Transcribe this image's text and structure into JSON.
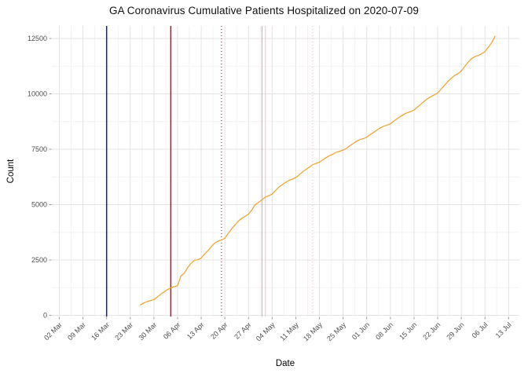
{
  "chart_data": {
    "type": "line",
    "title": "GA Coronavirus Cumulative Patients Hospitalized on 2020-07-09",
    "xlabel": "Date",
    "ylabel": "Count",
    "x_tick_labels": [
      "02 Mar",
      "09 Mar",
      "16 Mar",
      "23 Mar",
      "30 Mar",
      "06 Apr",
      "13 Apr",
      "20 Apr",
      "27 Apr",
      "04 May",
      "11 May",
      "18 May",
      "25 May",
      "01 Jun",
      "08 Jun",
      "15 Jun",
      "22 Jun",
      "29 Jun",
      "06 Jul",
      "13 Jul"
    ],
    "x_tick_start_date": "2020-03-02",
    "x_tick_interval_days": 7,
    "y_ticks": [
      0,
      2500,
      5000,
      7500,
      10000,
      12500
    ],
    "ylim": [
      0,
      13100
    ],
    "grid": "major-and-minor",
    "legend": "none",
    "colors": {
      "grid_major": "#e3e3e3",
      "grid_minor": "#f2f2f2",
      "tick_text": "#4d4d4d",
      "tick_mark": "#999999"
    },
    "series": [
      {
        "name": "cumulative-hospitalized",
        "color": "#f0a125",
        "width": 1.2,
        "points": [
          [
            "2020-03-26",
            470
          ],
          [
            "2020-03-27",
            560
          ],
          [
            "2020-03-28",
            620
          ],
          [
            "2020-03-29",
            665
          ],
          [
            "2020-03-30",
            710
          ],
          [
            "2020-03-31",
            830
          ],
          [
            "2020-04-01",
            950
          ],
          [
            "2020-04-02",
            1060
          ],
          [
            "2020-04-03",
            1160
          ],
          [
            "2020-04-04",
            1240
          ],
          [
            "2020-04-05",
            1290
          ],
          [
            "2020-04-06",
            1340
          ],
          [
            "2020-04-07",
            1780
          ],
          [
            "2020-04-08",
            1900
          ],
          [
            "2020-04-09",
            2160
          ],
          [
            "2020-04-10",
            2350
          ],
          [
            "2020-04-11",
            2480
          ],
          [
            "2020-04-12",
            2510
          ],
          [
            "2020-04-13",
            2590
          ],
          [
            "2020-04-14",
            2770
          ],
          [
            "2020-04-15",
            2920
          ],
          [
            "2020-04-16",
            3110
          ],
          [
            "2020-04-17",
            3260
          ],
          [
            "2020-04-18",
            3350
          ],
          [
            "2020-04-19",
            3410
          ],
          [
            "2020-04-20",
            3480
          ],
          [
            "2020-04-21",
            3700
          ],
          [
            "2020-04-22",
            3900
          ],
          [
            "2020-04-23",
            4080
          ],
          [
            "2020-04-24",
            4260
          ],
          [
            "2020-04-25",
            4380
          ],
          [
            "2020-04-26",
            4470
          ],
          [
            "2020-04-27",
            4570
          ],
          [
            "2020-04-28",
            4760
          ],
          [
            "2020-04-29",
            5000
          ],
          [
            "2020-04-30",
            5100
          ],
          [
            "2020-05-01",
            5220
          ],
          [
            "2020-05-02",
            5340
          ],
          [
            "2020-05-03",
            5400
          ],
          [
            "2020-05-04",
            5480
          ],
          [
            "2020-05-05",
            5640
          ],
          [
            "2020-05-06",
            5790
          ],
          [
            "2020-05-07",
            5900
          ],
          [
            "2020-05-08",
            6000
          ],
          [
            "2020-05-09",
            6100
          ],
          [
            "2020-05-10",
            6150
          ],
          [
            "2020-05-11",
            6220
          ],
          [
            "2020-05-12",
            6340
          ],
          [
            "2020-05-13",
            6480
          ],
          [
            "2020-05-14",
            6590
          ],
          [
            "2020-05-15",
            6690
          ],
          [
            "2020-05-16",
            6800
          ],
          [
            "2020-05-17",
            6860
          ],
          [
            "2020-05-18",
            6910
          ],
          [
            "2020-05-19",
            7030
          ],
          [
            "2020-05-20",
            7120
          ],
          [
            "2020-05-21",
            7210
          ],
          [
            "2020-05-22",
            7280
          ],
          [
            "2020-05-23",
            7360
          ],
          [
            "2020-05-24",
            7410
          ],
          [
            "2020-05-25",
            7460
          ],
          [
            "2020-05-26",
            7540
          ],
          [
            "2020-05-27",
            7660
          ],
          [
            "2020-05-28",
            7760
          ],
          [
            "2020-05-29",
            7860
          ],
          [
            "2020-05-30",
            7940
          ],
          [
            "2020-05-31",
            7980
          ],
          [
            "2020-06-01",
            8040
          ],
          [
            "2020-06-02",
            8160
          ],
          [
            "2020-06-03",
            8260
          ],
          [
            "2020-06-04",
            8370
          ],
          [
            "2020-06-05",
            8460
          ],
          [
            "2020-06-06",
            8540
          ],
          [
            "2020-06-07",
            8590
          ],
          [
            "2020-06-08",
            8650
          ],
          [
            "2020-06-09",
            8770
          ],
          [
            "2020-06-10",
            8880
          ],
          [
            "2020-06-11",
            8980
          ],
          [
            "2020-06-12",
            9070
          ],
          [
            "2020-06-13",
            9150
          ],
          [
            "2020-06-14",
            9200
          ],
          [
            "2020-06-15",
            9270
          ],
          [
            "2020-06-16",
            9400
          ],
          [
            "2020-06-17",
            9530
          ],
          [
            "2020-06-18",
            9660
          ],
          [
            "2020-06-19",
            9780
          ],
          [
            "2020-06-20",
            9880
          ],
          [
            "2020-06-21",
            9950
          ],
          [
            "2020-06-22",
            10040
          ],
          [
            "2020-06-23",
            10210
          ],
          [
            "2020-06-24",
            10380
          ],
          [
            "2020-06-25",
            10550
          ],
          [
            "2020-06-26",
            10700
          ],
          [
            "2020-06-27",
            10830
          ],
          [
            "2020-06-28",
            10910
          ],
          [
            "2020-06-29",
            11030
          ],
          [
            "2020-06-30",
            11230
          ],
          [
            "2020-07-01",
            11430
          ],
          [
            "2020-07-02",
            11590
          ],
          [
            "2020-07-03",
            11680
          ],
          [
            "2020-07-04",
            11730
          ],
          [
            "2020-07-05",
            11810
          ],
          [
            "2020-07-06",
            11900
          ],
          [
            "2020-07-07",
            12110
          ],
          [
            "2020-07-08",
            12310
          ],
          [
            "2020-07-09",
            12610
          ]
        ]
      }
    ],
    "reference_lines": [
      {
        "name": "vline-blue-solid",
        "date": "2020-03-16",
        "color": "#1616b8",
        "style": "solid",
        "width": 1.5
      },
      {
        "name": "vline-darkred-solid",
        "date": "2020-04-04",
        "color": "#b01624",
        "style": "solid",
        "width": 1.5
      },
      {
        "name": "vline-red-dotted",
        "date": "2020-04-19",
        "color": "#c64242",
        "style": "dotted",
        "width": 1.3
      },
      {
        "name": "vline-pink-solid-1",
        "date": "2020-05-01",
        "color": "#f2a2b8",
        "style": "solid",
        "width": 1.1
      },
      {
        "name": "vline-pink-solid-2",
        "date": "2020-05-02",
        "color": "#f8c4d0",
        "style": "solid",
        "width": 1.1
      },
      {
        "name": "vline-pink-dotted",
        "date": "2020-05-16",
        "color": "#f5bac8",
        "style": "dotted",
        "width": 1.2
      }
    ]
  }
}
